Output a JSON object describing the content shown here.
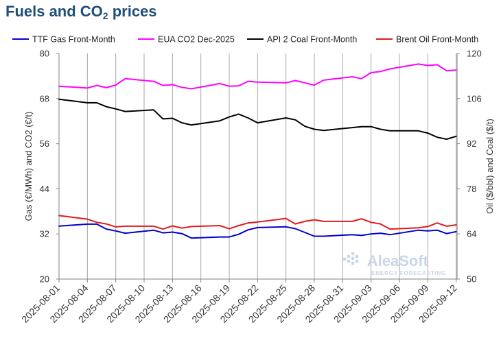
{
  "page": {
    "title_main": "Fuels and CO",
    "title_sub": "2",
    "title_tail": " prices"
  },
  "watermark": {
    "brand": "AleaSoft",
    "tagline": "ENERGY FORECASTING"
  },
  "chart_data": {
    "type": "line",
    "title": "Fuels and CO2 prices",
    "ylabel_left": "Gas (€/MWh) and CO2 (€/t)",
    "ylabel_right": "Oil ($/bbl) and Coal ($/t)",
    "ylim_left": [
      20,
      80
    ],
    "yticks_left": [
      20,
      32,
      44,
      56,
      68,
      80
    ],
    "ylim_right": [
      50,
      120
    ],
    "yticks_right": [
      50,
      64,
      78,
      92,
      106,
      120
    ],
    "grid": "vertical",
    "legend_position": "top",
    "x_tick_labels": [
      "2025-08-01",
      "2025-08-04",
      "2025-08-07",
      "2025-08-10",
      "2025-08-13",
      "2025-08-16",
      "2025-08-19",
      "2025-08-22",
      "2025-08-25",
      "2025-08-28",
      "2025-08-31",
      "2025-09-03",
      "2025-09-06",
      "2025-09-09",
      "2025-09-12"
    ],
    "x": [
      "2025-08-01",
      "2025-08-04",
      "2025-08-05",
      "2025-08-06",
      "2025-08-07",
      "2025-08-08",
      "2025-08-11",
      "2025-08-12",
      "2025-08-13",
      "2025-08-14",
      "2025-08-15",
      "2025-08-18",
      "2025-08-19",
      "2025-08-20",
      "2025-08-21",
      "2025-08-22",
      "2025-08-25",
      "2025-08-26",
      "2025-08-27",
      "2025-08-28",
      "2025-08-29",
      "2025-09-01",
      "2025-09-02",
      "2025-09-03",
      "2025-09-04",
      "2025-09-05",
      "2025-09-08",
      "2025-09-09",
      "2025-09-10",
      "2025-09-11",
      "2025-09-12"
    ],
    "series": [
      {
        "name": "TTF Gas Front-Month",
        "axis": "left",
        "color": "#0000cc",
        "values": [
          34.1,
          34.6,
          34.6,
          33.3,
          32.8,
          32.2,
          33.0,
          32.3,
          32.5,
          32.1,
          30.9,
          31.2,
          31.2,
          31.9,
          33.1,
          33.7,
          33.9,
          33.4,
          32.4,
          31.4,
          31.4,
          31.8,
          31.6,
          32.0,
          32.2,
          31.8,
          33.0,
          32.8,
          33.0,
          32.1,
          32.6
        ]
      },
      {
        "name": "EUA CO2 Dec-2025",
        "axis": "left",
        "color": "#ff00ff",
        "values": [
          71.3,
          70.8,
          71.5,
          70.9,
          71.6,
          73.3,
          72.6,
          71.5,
          71.7,
          71.0,
          70.6,
          72.0,
          71.3,
          71.4,
          72.6,
          72.4,
          72.2,
          72.8,
          72.2,
          71.6,
          72.9,
          73.8,
          73.3,
          74.9,
          75.2,
          75.9,
          77.2,
          76.8,
          77.0,
          75.4,
          75.6
        ]
      },
      {
        "name": "API 2 Coal Front-Month",
        "axis": "right",
        "color": "#000000",
        "values": [
          105.8,
          104.7,
          104.7,
          103.5,
          102.8,
          102.0,
          102.5,
          99.7,
          99.9,
          98.5,
          97.8,
          99.1,
          100.3,
          101.2,
          100.0,
          98.5,
          100.0,
          99.4,
          97.4,
          96.5,
          96.1,
          97.0,
          97.3,
          97.3,
          96.5,
          96.0,
          96.0,
          95.3,
          94.0,
          93.4,
          94.3
        ]
      },
      {
        "name": "Brent Oil Front-Month",
        "axis": "right",
        "color": "#e31a1c",
        "values": [
          69.7,
          68.6,
          67.6,
          67.1,
          66.2,
          66.4,
          66.4,
          65.5,
          66.5,
          65.8,
          66.3,
          66.6,
          65.6,
          66.6,
          67.4,
          67.7,
          68.8,
          67.1,
          67.9,
          68.4,
          67.9,
          67.9,
          68.7,
          67.6,
          67.1,
          65.5,
          65.9,
          66.3,
          67.4,
          66.4,
          66.8
        ]
      }
    ]
  }
}
